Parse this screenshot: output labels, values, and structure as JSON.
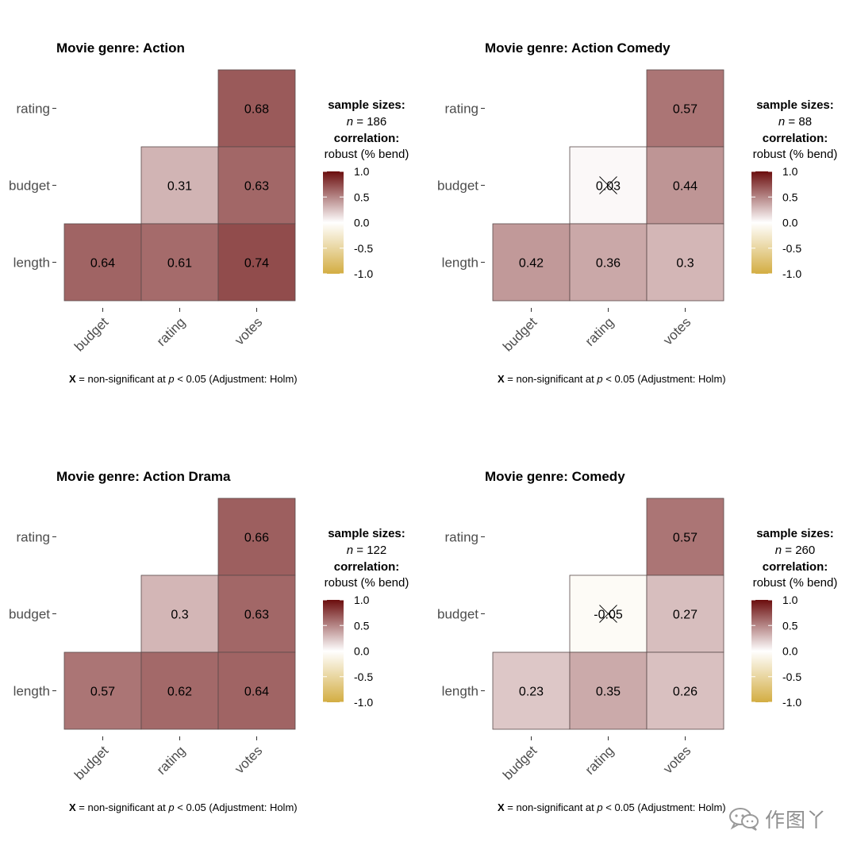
{
  "legend": {
    "sample_sizes_label": "sample sizes:",
    "n_symbol": "n",
    "correlation_label": "correlation:",
    "method": "robust (% bend)",
    "ticks": [
      "1.0",
      "0.5",
      "0.0",
      "-0.5",
      "-1.0"
    ],
    "colors": {
      "high": "#6b0d0d",
      "mid": "#ffffff",
      "low": "#d3ad42"
    }
  },
  "caption": {
    "symbol": "X",
    "text_before": " = non-significant at ",
    "p_symbol": "p",
    "text_after": " < 0.05 (Adjustment: Holm)"
  },
  "watermark": {
    "text": "作图丫"
  },
  "chart_data": [
    {
      "type": "heatmap",
      "title": "Movie genre: Action",
      "sample_size": "186",
      "x_categories": [
        "budget",
        "rating",
        "votes"
      ],
      "y_categories": [
        "rating",
        "budget",
        "length"
      ],
      "cells": [
        {
          "x": "votes",
          "y": "rating",
          "value": 0.68,
          "label": "0.68",
          "significant": true
        },
        {
          "x": "rating",
          "y": "budget",
          "value": 0.31,
          "label": "0.31",
          "significant": true
        },
        {
          "x": "votes",
          "y": "budget",
          "value": 0.63,
          "label": "0.63",
          "significant": true
        },
        {
          "x": "budget",
          "y": "length",
          "value": 0.64,
          "label": "0.64",
          "significant": true
        },
        {
          "x": "rating",
          "y": "length",
          "value": 0.61,
          "label": "0.61",
          "significant": true
        },
        {
          "x": "votes",
          "y": "length",
          "value": 0.74,
          "label": "0.74",
          "significant": true
        }
      ]
    },
    {
      "type": "heatmap",
      "title": "Movie genre: Action Comedy",
      "sample_size": "88",
      "x_categories": [
        "budget",
        "rating",
        "votes"
      ],
      "y_categories": [
        "rating",
        "budget",
        "length"
      ],
      "cells": [
        {
          "x": "votes",
          "y": "rating",
          "value": 0.57,
          "label": "0.57",
          "significant": true
        },
        {
          "x": "rating",
          "y": "budget",
          "value": 0.03,
          "label": "0.03",
          "significant": false
        },
        {
          "x": "votes",
          "y": "budget",
          "value": 0.44,
          "label": "0.44",
          "significant": true
        },
        {
          "x": "budget",
          "y": "length",
          "value": 0.42,
          "label": "0.42",
          "significant": true
        },
        {
          "x": "rating",
          "y": "length",
          "value": 0.36,
          "label": "0.36",
          "significant": true
        },
        {
          "x": "votes",
          "y": "length",
          "value": 0.3,
          "label": "0.3",
          "significant": true
        }
      ]
    },
    {
      "type": "heatmap",
      "title": "Movie genre: Action Drama",
      "sample_size": "122",
      "x_categories": [
        "budget",
        "rating",
        "votes"
      ],
      "y_categories": [
        "rating",
        "budget",
        "length"
      ],
      "cells": [
        {
          "x": "votes",
          "y": "rating",
          "value": 0.66,
          "label": "0.66",
          "significant": true
        },
        {
          "x": "rating",
          "y": "budget",
          "value": 0.3,
          "label": "0.3",
          "significant": true
        },
        {
          "x": "votes",
          "y": "budget",
          "value": 0.63,
          "label": "0.63",
          "significant": true
        },
        {
          "x": "budget",
          "y": "length",
          "value": 0.57,
          "label": "0.57",
          "significant": true
        },
        {
          "x": "rating",
          "y": "length",
          "value": 0.62,
          "label": "0.62",
          "significant": true
        },
        {
          "x": "votes",
          "y": "length",
          "value": 0.64,
          "label": "0.64",
          "significant": true
        }
      ]
    },
    {
      "type": "heatmap",
      "title": "Movie genre: Comedy",
      "sample_size": "260",
      "x_categories": [
        "budget",
        "rating",
        "votes"
      ],
      "y_categories": [
        "rating",
        "budget",
        "length"
      ],
      "cells": [
        {
          "x": "votes",
          "y": "rating",
          "value": 0.57,
          "label": "0.57",
          "significant": true
        },
        {
          "x": "rating",
          "y": "budget",
          "value": -0.05,
          "label": "-0.05",
          "significant": false
        },
        {
          "x": "votes",
          "y": "budget",
          "value": 0.27,
          "label": "0.27",
          "significant": true
        },
        {
          "x": "budget",
          "y": "length",
          "value": 0.23,
          "label": "0.23",
          "significant": true
        },
        {
          "x": "rating",
          "y": "length",
          "value": 0.35,
          "label": "0.35",
          "significant": true
        },
        {
          "x": "votes",
          "y": "length",
          "value": 0.26,
          "label": "0.26",
          "significant": true
        }
      ]
    }
  ]
}
